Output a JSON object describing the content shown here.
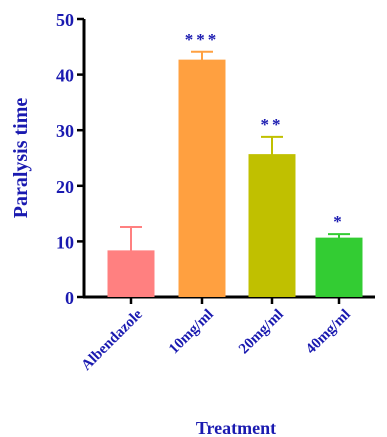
{
  "chart_data": {
    "type": "bar",
    "title": "",
    "xlabel": "Treatment",
    "ylabel": "Paralysis time",
    "ylim": [
      0,
      50
    ],
    "yticks": [
      "0",
      "10",
      "20",
      "30",
      "40",
      "50"
    ],
    "categories": [
      "Albendazole",
      "10mg/ml",
      "20mg/ml",
      "40mg/ml"
    ],
    "values": [
      8.3,
      42.6,
      25.6,
      10.6
    ],
    "errors": [
      4.3,
      1.5,
      3.2,
      0.7
    ],
    "significance": [
      "",
      "***",
      "**",
      "*"
    ],
    "bar_colors": [
      "#ff8080",
      "#ffa040",
      "#c0c000",
      "#33cc33"
    ],
    "axis_color": "#000000",
    "label_color": "#1a1ab0",
    "star_color": "#1a1ab0"
  }
}
